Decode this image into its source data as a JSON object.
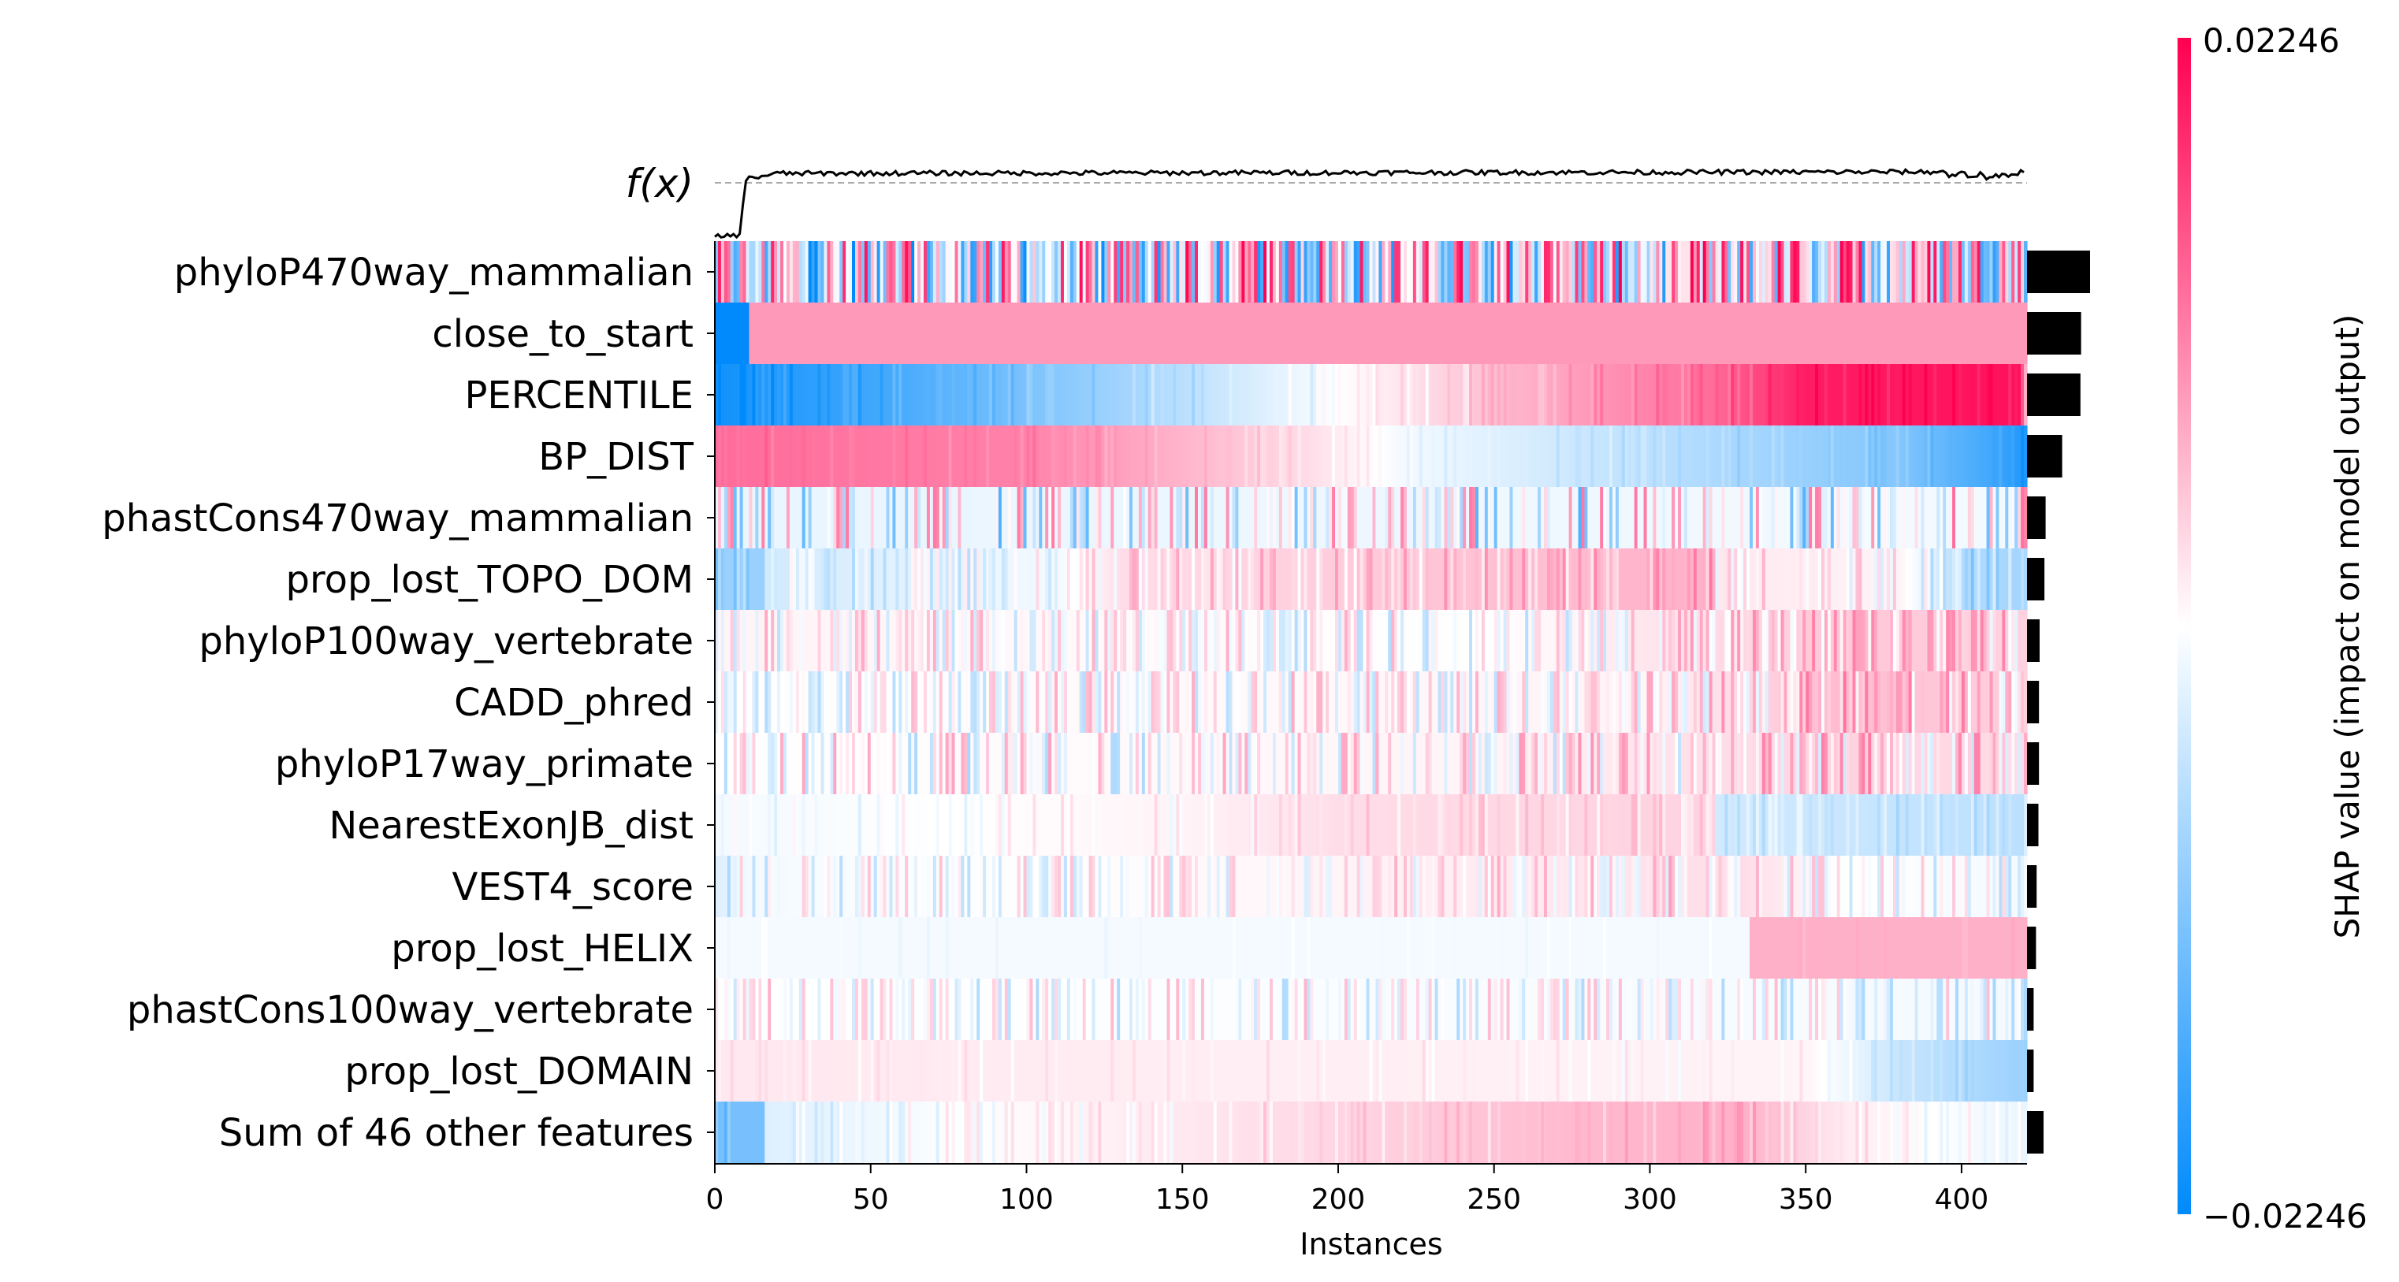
{
  "chart_data": {
    "type": "heatmap",
    "title": "",
    "xlabel": "Instances",
    "ylabel": "",
    "x_range": [
      0,
      421
    ],
    "x_ticks": [
      "0",
      "50",
      "100",
      "150",
      "200",
      "250",
      "300",
      "350",
      "400"
    ],
    "fx_label": "f(x)",
    "features": [
      "phyloP470way_mammalian",
      "close_to_start",
      "PERCENTILE",
      "BP_DIST",
      "phastCons470way_mammalian",
      "prop_lost_TOPO_DOM",
      "phyloP100way_vertebrate",
      "CADD_phred",
      "phyloP17way_primate",
      "NearestExonJB_dist",
      "VEST4_score",
      "prop_lost_HELIX",
      "phastCons100way_vertebrate",
      "prop_lost_DOMAIN",
      "Sum of 46 other features"
    ],
    "mean_abs_shap": [
      0.021,
      0.018,
      0.0178,
      0.0117,
      0.0062,
      0.0058,
      0.0042,
      0.004,
      0.004,
      0.0038,
      0.0032,
      0.003,
      0.0022,
      0.0022,
      0.0055
    ],
    "row_profiles": [
      {
        "base": [
          [
            0,
            -0.002
          ],
          [
            421,
            0.004
          ]
        ],
        "noise": 0.9,
        "noise_amp": 0.022
      },
      {
        "base": [
          [
            0,
            -0.02246
          ],
          [
            10,
            -0.02246
          ],
          [
            11,
            0.009
          ],
          [
            421,
            0.009
          ]
        ],
        "noise": 0.0,
        "noise_amp": 0.0
      },
      {
        "base": [
          [
            0,
            -0.021
          ],
          [
            60,
            -0.016
          ],
          [
            150,
            -0.006
          ],
          [
            200,
            0.0
          ],
          [
            260,
            0.007
          ],
          [
            320,
            0.013
          ],
          [
            350,
            0.02
          ],
          [
            418,
            0.021
          ],
          [
            421,
            0.0
          ]
        ],
        "noise": 0.3,
        "noise_amp": 0.003
      },
      {
        "base": [
          [
            0,
            0.013
          ],
          [
            100,
            0.011
          ],
          [
            190,
            0.003
          ],
          [
            220,
            -0.001
          ],
          [
            300,
            -0.006
          ],
          [
            380,
            -0.011
          ],
          [
            410,
            -0.017
          ],
          [
            421,
            -0.02
          ]
        ],
        "noise": 0.3,
        "noise_amp": 0.002
      },
      {
        "base": [
          [
            0,
            -0.002
          ],
          [
            421,
            -0.001
          ]
        ],
        "noise": 0.5,
        "noise_amp": 0.014
      },
      {
        "base": [
          [
            0,
            -0.009
          ],
          [
            15,
            -0.009
          ],
          [
            16,
            -0.004
          ],
          [
            110,
            -0.001
          ],
          [
            130,
            0.003
          ],
          [
            320,
            0.007
          ],
          [
            321,
            0.002
          ],
          [
            380,
            0.001
          ],
          [
            400,
            -0.007
          ],
          [
            421,
            -0.008
          ]
        ],
        "noise": 0.5,
        "noise_amp": 0.005
      },
      {
        "base": [
          [
            0,
            0.001
          ],
          [
            250,
            0.0
          ],
          [
            360,
            0.005
          ],
          [
            421,
            0.004
          ]
        ],
        "noise": 0.6,
        "noise_amp": 0.007
      },
      {
        "base": [
          [
            0,
            0.0
          ],
          [
            300,
            0.001
          ],
          [
            360,
            0.006
          ],
          [
            421,
            0.004
          ]
        ],
        "noise": 0.6,
        "noise_amp": 0.007
      },
      {
        "base": [
          [
            0,
            0.0
          ],
          [
            250,
            0.001
          ],
          [
            360,
            0.004
          ],
          [
            421,
            0.003
          ]
        ],
        "noise": 0.5,
        "noise_amp": 0.008
      },
      {
        "base": [
          [
            0,
            -0.001
          ],
          [
            150,
            0.001
          ],
          [
            200,
            0.003
          ],
          [
            320,
            0.004
          ],
          [
            321,
            -0.004
          ],
          [
            421,
            -0.006
          ]
        ],
        "noise": 0.3,
        "noise_amp": 0.003
      },
      {
        "base": [
          [
            0,
            -0.003
          ],
          [
            10,
            -0.001
          ],
          [
            200,
            0.001
          ],
          [
            330,
            0.003
          ],
          [
            360,
            0.0
          ],
          [
            421,
            -0.001
          ]
        ],
        "noise": 0.5,
        "noise_amp": 0.006
      },
      {
        "base": [
          [
            0,
            -0.001
          ],
          [
            331,
            -0.001
          ],
          [
            332,
            0.007
          ],
          [
            421,
            0.007
          ]
        ],
        "noise": 0.1,
        "noise_amp": 0.001
      },
      {
        "base": [
          [
            0,
            0.0
          ],
          [
            421,
            -0.001
          ]
        ],
        "noise": 0.5,
        "noise_amp": 0.007
      },
      {
        "base": [
          [
            0,
            0.002
          ],
          [
            350,
            0.001
          ],
          [
            380,
            -0.005
          ],
          [
            421,
            -0.009
          ]
        ],
        "noise": 0.2,
        "noise_amp": 0.002
      },
      {
        "base": [
          [
            0,
            -0.012
          ],
          [
            15,
            -0.012
          ],
          [
            16,
            -0.003
          ],
          [
            80,
            0.0
          ],
          [
            150,
            0.002
          ],
          [
            270,
            0.006
          ],
          [
            330,
            0.007
          ],
          [
            360,
            0.002
          ],
          [
            421,
            -0.002
          ]
        ],
        "noise": 0.3,
        "noise_amp": 0.003
      }
    ],
    "fx_profile": [
      [
        0,
        0.15
      ],
      [
        8,
        0.18
      ],
      [
        10,
        0.88
      ],
      [
        20,
        0.95
      ],
      [
        421,
        0.97
      ],
      [
        410,
        0.82
      ]
    ],
    "colorbar": {
      "label": "SHAP value (impact on model output)",
      "max_label": "0.02246",
      "min_label": "−0.02246",
      "vmin": -0.02246,
      "vmax": 0.02246,
      "low_color": "#008afb",
      "mid_color": "#ffffff",
      "high_color": "#ff0051"
    }
  }
}
